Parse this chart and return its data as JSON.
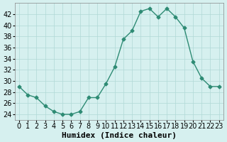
{
  "x": [
    0,
    1,
    2,
    3,
    4,
    5,
    6,
    7,
    8,
    9,
    10,
    11,
    12,
    13,
    14,
    15,
    16,
    17,
    18,
    19,
    20,
    21,
    22,
    23
  ],
  "y": [
    29,
    27.5,
    27,
    25.5,
    24.5,
    24,
    24,
    24.5,
    27,
    27,
    29.5,
    32.5,
    37.5,
    39,
    42.5,
    43,
    41.5,
    43,
    41.5,
    39.5,
    33.5,
    30.5,
    29,
    29
  ],
  "xlabel": "Humidex (Indice chaleur)",
  "ylim": [
    23,
    44
  ],
  "xlim": [
    -0.5,
    23.5
  ],
  "yticks": [
    24,
    26,
    28,
    30,
    32,
    34,
    36,
    38,
    40,
    42
  ],
  "xticks": [
    0,
    1,
    2,
    3,
    4,
    5,
    6,
    7,
    8,
    9,
    10,
    11,
    12,
    13,
    14,
    15,
    16,
    17,
    18,
    19,
    20,
    21,
    22,
    23
  ],
  "line_color": "#2e8b74",
  "marker_color": "#2e8b74",
  "bg_color": "#d6f0ef",
  "grid_color": "#b0d8d6",
  "tick_fontsize": 7,
  "xlabel_fontsize": 8
}
